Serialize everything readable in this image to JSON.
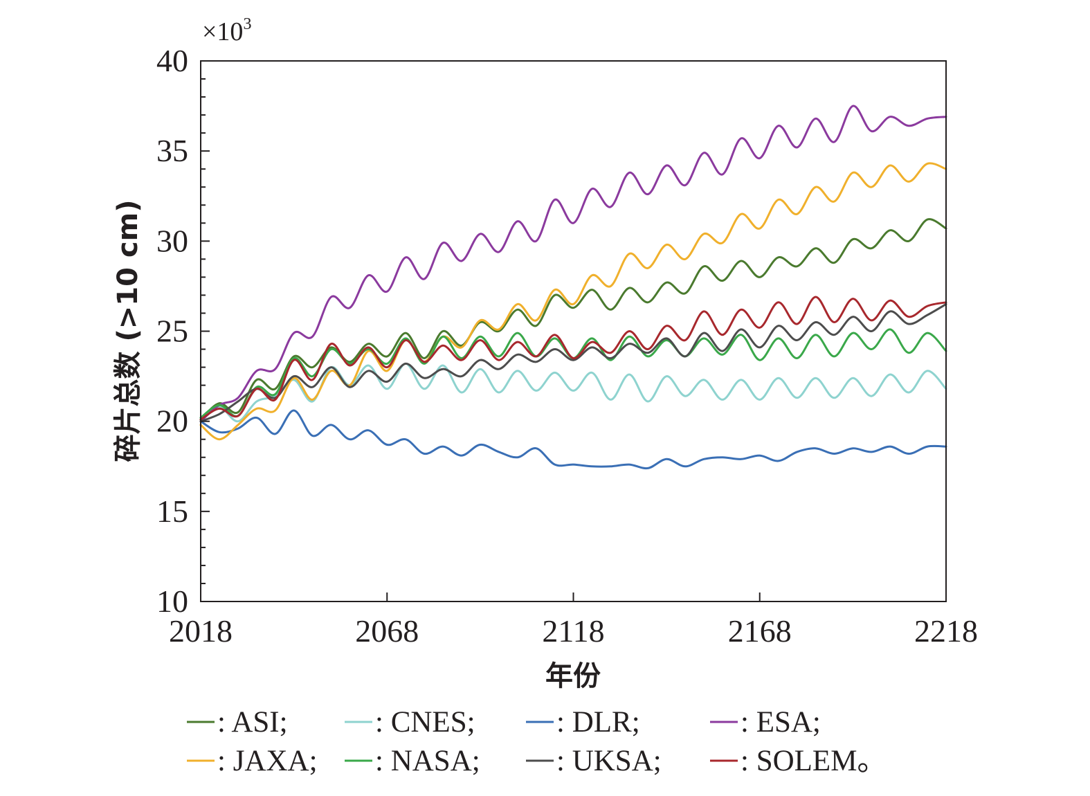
{
  "chart_data": {
    "type": "line",
    "ylabel": "碎片总数 (>10 cm)",
    "xlabel": "年份",
    "y_multiplier": "×10",
    "y_multiplier_exp": "3",
    "xlim": [
      2018,
      2218
    ],
    "ylim": [
      10,
      40
    ],
    "x_ticks": [
      2018,
      2068,
      2118,
      2168,
      2218
    ],
    "y_ticks": [
      10,
      15,
      20,
      25,
      30,
      35,
      40
    ],
    "legend_separator": "—",
    "series": [
      {
        "name": ": ASI;",
        "color": "#4a7a2e",
        "x": [
          2018,
          2023,
          2028,
          2033,
          2038,
          2043,
          2048,
          2053,
          2058,
          2063,
          2068,
          2073,
          2078,
          2083,
          2088,
          2093,
          2098,
          2103,
          2108,
          2113,
          2118,
          2123,
          2128,
          2133,
          2138,
          2143,
          2148,
          2153,
          2158,
          2163,
          2168,
          2173,
          2178,
          2183,
          2188,
          2193,
          2198,
          2203,
          2208,
          2213,
          2218
        ],
        "y": [
          20.1,
          21.0,
          20.5,
          22.3,
          21.8,
          23.6,
          23.0,
          24.1,
          23.3,
          24.3,
          23.6,
          24.9,
          23.5,
          25.0,
          24.2,
          25.5,
          25.0,
          26.2,
          25.3,
          27.0,
          26.3,
          27.3,
          26.2,
          27.4,
          26.6,
          27.7,
          27.1,
          28.6,
          27.8,
          28.9,
          28.0,
          29.1,
          28.6,
          29.6,
          28.8,
          30.1,
          29.6,
          30.6,
          30.0,
          31.2,
          30.7
        ]
      },
      {
        "name": ": CNES;",
        "color": "#8ed3cf",
        "x": [
          2018,
          2023,
          2028,
          2033,
          2038,
          2043,
          2048,
          2053,
          2058,
          2063,
          2068,
          2073,
          2078,
          2083,
          2088,
          2093,
          2098,
          2103,
          2108,
          2113,
          2118,
          2123,
          2128,
          2133,
          2138,
          2143,
          2148,
          2153,
          2158,
          2163,
          2168,
          2173,
          2178,
          2183,
          2188,
          2193,
          2198,
          2203,
          2208,
          2213,
          2218
        ],
        "y": [
          20.2,
          20.8,
          20.0,
          21.1,
          21.4,
          22.3,
          21.1,
          23.0,
          22.0,
          23.1,
          21.8,
          23.2,
          21.8,
          23.1,
          21.6,
          22.9,
          21.6,
          22.8,
          21.7,
          22.7,
          21.7,
          22.7,
          21.2,
          22.6,
          21.1,
          22.5,
          21.4,
          22.3,
          21.2,
          22.3,
          21.2,
          22.4,
          21.3,
          22.4,
          21.3,
          22.4,
          21.4,
          22.6,
          21.6,
          22.8,
          21.8
        ]
      },
      {
        "name": ": DLR;",
        "color": "#3a6fb5",
        "x": [
          2018,
          2023,
          2028,
          2033,
          2038,
          2043,
          2048,
          2053,
          2058,
          2063,
          2068,
          2073,
          2078,
          2083,
          2088,
          2093,
          2098,
          2103,
          2108,
          2113,
          2118,
          2123,
          2128,
          2133,
          2138,
          2143,
          2148,
          2153,
          2158,
          2163,
          2168,
          2173,
          2178,
          2183,
          2188,
          2193,
          2198,
          2203,
          2208,
          2213,
          2218
        ],
        "y": [
          20.0,
          19.4,
          19.6,
          20.2,
          19.3,
          20.6,
          19.2,
          19.8,
          19.0,
          19.5,
          18.7,
          19.0,
          18.2,
          18.6,
          18.1,
          18.7,
          18.3,
          18.0,
          18.5,
          17.6,
          17.6,
          17.5,
          17.5,
          17.6,
          17.4,
          17.9,
          17.5,
          17.9,
          18.0,
          17.9,
          18.1,
          17.8,
          18.3,
          18.5,
          18.2,
          18.5,
          18.3,
          18.6,
          18.2,
          18.6,
          18.6
        ]
      },
      {
        "name": ": ESA;",
        "color": "#8b3a9e",
        "x": [
          2018,
          2023,
          2028,
          2033,
          2038,
          2043,
          2048,
          2053,
          2058,
          2063,
          2068,
          2073,
          2078,
          2083,
          2088,
          2093,
          2098,
          2103,
          2108,
          2113,
          2118,
          2123,
          2128,
          2133,
          2138,
          2143,
          2148,
          2153,
          2158,
          2163,
          2168,
          2173,
          2178,
          2183,
          2188,
          2193,
          2198,
          2203,
          2208,
          2213,
          2218
        ],
        "y": [
          20.0,
          20.9,
          21.3,
          22.8,
          22.9,
          24.9,
          24.7,
          26.9,
          26.3,
          28.1,
          27.2,
          29.1,
          27.9,
          29.9,
          28.9,
          30.4,
          29.4,
          31.1,
          30.0,
          32.3,
          31.0,
          32.9,
          31.9,
          33.8,
          32.6,
          34.2,
          33.1,
          34.9,
          33.7,
          35.7,
          34.6,
          36.4,
          35.2,
          36.8,
          35.5,
          37.5,
          36.1,
          36.9,
          36.4,
          36.8,
          36.9
        ]
      },
      {
        "name": ": JAXA;",
        "color": "#f0b02c",
        "x": [
          2018,
          2023,
          2028,
          2033,
          2038,
          2043,
          2048,
          2053,
          2058,
          2063,
          2068,
          2073,
          2078,
          2083,
          2088,
          2093,
          2098,
          2103,
          2108,
          2113,
          2118,
          2123,
          2128,
          2133,
          2138,
          2143,
          2148,
          2153,
          2158,
          2163,
          2168,
          2173,
          2178,
          2183,
          2188,
          2193,
          2198,
          2203,
          2208,
          2213,
          2218
        ],
        "y": [
          19.8,
          19.0,
          19.8,
          20.7,
          20.6,
          22.4,
          21.2,
          22.8,
          22.0,
          23.9,
          22.8,
          24.5,
          23.3,
          24.7,
          24.1,
          25.6,
          25.1,
          26.5,
          25.6,
          27.3,
          26.5,
          28.1,
          27.5,
          29.3,
          28.5,
          29.8,
          29.0,
          30.4,
          29.9,
          31.5,
          30.7,
          32.3,
          31.5,
          33.0,
          32.2,
          33.8,
          33.0,
          34.2,
          33.3,
          34.3,
          34.0
        ]
      },
      {
        "name": ": NASA;",
        "color": "#3aa84a",
        "x": [
          2018,
          2023,
          2028,
          2033,
          2038,
          2043,
          2048,
          2053,
          2058,
          2063,
          2068,
          2073,
          2078,
          2083,
          2088,
          2093,
          2098,
          2103,
          2108,
          2113,
          2118,
          2123,
          2128,
          2133,
          2138,
          2143,
          2148,
          2153,
          2158,
          2163,
          2168,
          2173,
          2178,
          2183,
          2188,
          2193,
          2198,
          2203,
          2208,
          2213,
          2218
        ],
        "y": [
          20.2,
          20.9,
          20.3,
          21.9,
          21.5,
          23.5,
          22.5,
          24.0,
          23.2,
          24.0,
          23.2,
          24.6,
          23.2,
          24.7,
          23.5,
          24.7,
          23.6,
          24.9,
          23.6,
          24.6,
          23.5,
          24.6,
          23.4,
          24.7,
          23.6,
          24.5,
          23.6,
          24.6,
          23.7,
          24.8,
          23.4,
          24.6,
          23.5,
          24.8,
          23.6,
          24.9,
          24.0,
          25.1,
          23.8,
          24.9,
          23.9
        ]
      },
      {
        "name": ": UKSA;",
        "color": "#4d4d4d",
        "x": [
          2018,
          2023,
          2028,
          2033,
          2038,
          2043,
          2048,
          2053,
          2058,
          2063,
          2068,
          2073,
          2078,
          2083,
          2088,
          2093,
          2098,
          2103,
          2108,
          2113,
          2118,
          2123,
          2128,
          2133,
          2138,
          2143,
          2148,
          2153,
          2158,
          2163,
          2168,
          2173,
          2178,
          2183,
          2188,
          2193,
          2198,
          2203,
          2208,
          2213,
          2218
        ],
        "y": [
          20.0,
          20.4,
          21.1,
          21.8,
          21.3,
          22.5,
          21.9,
          23.0,
          21.9,
          22.8,
          22.2,
          23.2,
          22.4,
          22.9,
          22.5,
          23.4,
          22.9,
          23.7,
          23.3,
          24.0,
          23.4,
          24.1,
          23.5,
          24.3,
          23.8,
          24.6,
          23.6,
          24.9,
          23.9,
          25.1,
          24.1,
          25.3,
          24.5,
          25.5,
          24.8,
          25.8,
          25.0,
          26.1,
          25.4,
          25.9,
          26.5
        ]
      },
      {
        "name": ": SOLEM。",
        "color": "#a8282d",
        "x": [
          2018,
          2023,
          2028,
          2033,
          2038,
          2043,
          2048,
          2053,
          2058,
          2063,
          2068,
          2073,
          2078,
          2083,
          2088,
          2093,
          2098,
          2103,
          2108,
          2113,
          2118,
          2123,
          2128,
          2133,
          2138,
          2143,
          2148,
          2153,
          2158,
          2163,
          2168,
          2173,
          2178,
          2183,
          2188,
          2193,
          2198,
          2203,
          2208,
          2213,
          2218
        ],
        "y": [
          20.1,
          20.7,
          20.3,
          21.8,
          21.2,
          23.4,
          22.3,
          24.3,
          23.1,
          24.1,
          23.0,
          24.5,
          23.3,
          24.2,
          23.4,
          24.5,
          23.4,
          24.4,
          23.6,
          24.8,
          23.5,
          24.4,
          23.8,
          25.0,
          24.0,
          25.3,
          24.5,
          26.1,
          24.8,
          26.2,
          25.2,
          26.6,
          25.4,
          26.9,
          25.5,
          26.8,
          25.6,
          26.7,
          25.8,
          26.4,
          26.6
        ]
      }
    ]
  }
}
